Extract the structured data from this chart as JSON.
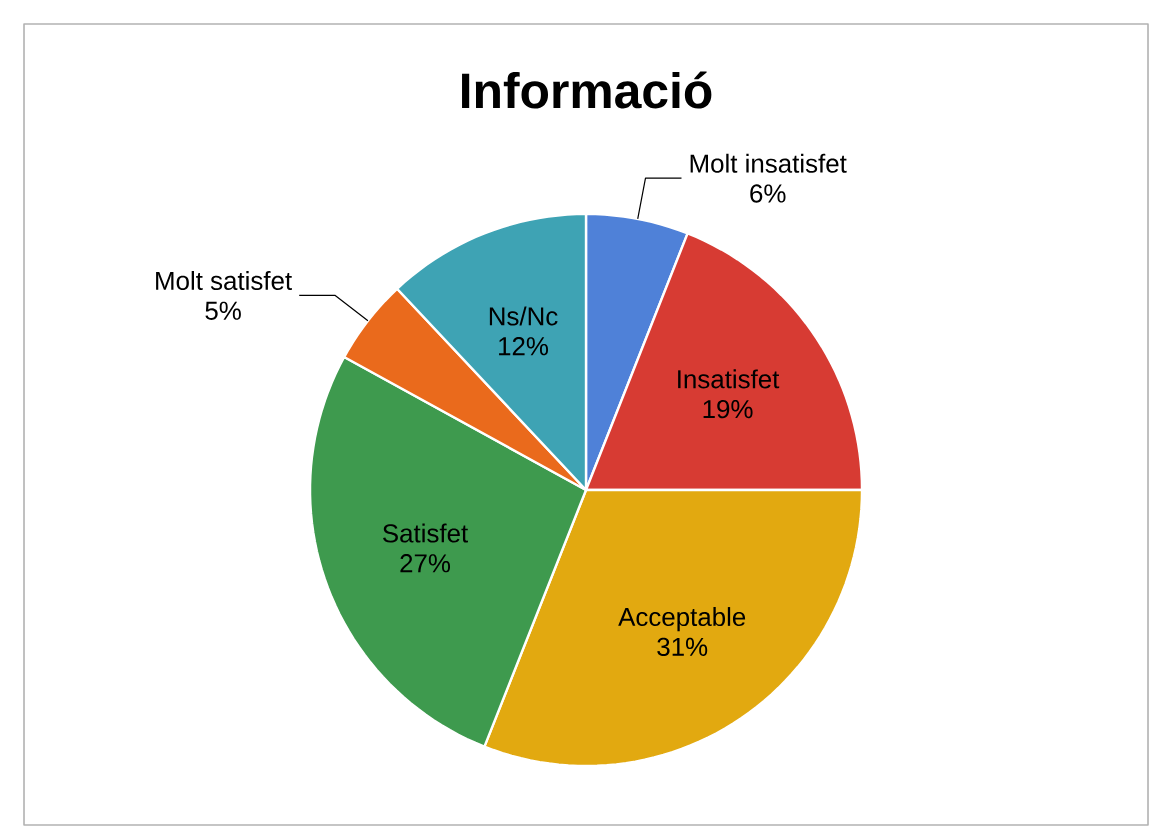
{
  "chart_data": {
    "type": "pie",
    "title": "Informació",
    "categories": [
      "Molt insatisfet",
      "Insatisfet",
      "Acceptable",
      "Satisfet",
      "Molt satisfet",
      "Ns/Nc"
    ],
    "values": [
      6,
      19,
      31,
      27,
      5,
      12
    ],
    "value_labels": [
      "6%",
      "19%",
      "31%",
      "27%",
      "5%",
      "12%"
    ],
    "colors": [
      "#4f81d8",
      "#d73b33",
      "#e2a910",
      "#3e9a4e",
      "#ea6a1c",
      "#3ea3b4"
    ]
  }
}
